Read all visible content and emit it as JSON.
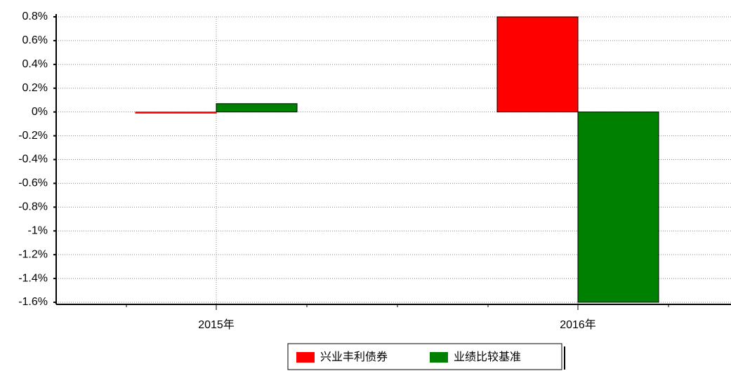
{
  "chart_data": {
    "type": "bar",
    "categories": [
      "2015年",
      "2016年"
    ],
    "series": [
      {
        "name": "兴业丰利债券",
        "color": "#ff0000",
        "values": [
          -0.01,
          0.8
        ]
      },
      {
        "name": "业绩比较基准",
        "color": "#008000",
        "values": [
          0.07,
          -1.6
        ]
      }
    ],
    "ylim": [
      -1.6,
      0.8
    ],
    "yticks": [
      {
        "value": 0.8,
        "label": "0.8%"
      },
      {
        "value": 0.6,
        "label": "0.6%"
      },
      {
        "value": 0.4,
        "label": "0.4%"
      },
      {
        "value": 0.2,
        "label": "0.2%"
      },
      {
        "value": 0,
        "label": "0%"
      },
      {
        "value": -0.2,
        "label": "-0.2%"
      },
      {
        "value": -0.4,
        "label": "-0.4%"
      },
      {
        "value": -0.6,
        "label": "-0.6%"
      },
      {
        "value": -0.8,
        "label": "-0.8%"
      },
      {
        "value": -1,
        "label": "-1%"
      },
      {
        "value": -1.2,
        "label": "-1.2%"
      },
      {
        "value": -1.4,
        "label": "-1.4%"
      },
      {
        "value": -1.6,
        "label": "-1.6%"
      }
    ],
    "grid": true,
    "legend": "bottom"
  }
}
